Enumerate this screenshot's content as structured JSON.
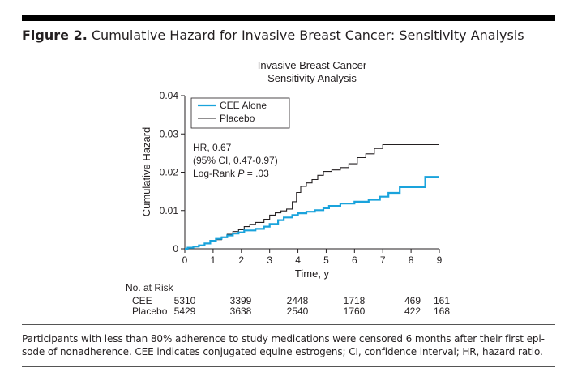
{
  "figure": {
    "label": "Figure 2.",
    "title": "Cumulative Hazard for Invasive Breast Cancer: Sensitivity Analysis",
    "caption_lines": [
      "Participants with less than 80% adherence to study medications were censored 6 months after their first epi-",
      "sode of nonadherence. CEE indicates conjugated equine estrogens; CI, confidence interval; HR, hazard ratio."
    ]
  },
  "chart_data": {
    "type": "line",
    "title": [
      "Invasive Breast Cancer",
      "Sensitivity Analysis"
    ],
    "xlabel": "Time, y",
    "ylabel": "Cumulative Hazard",
    "xlim": [
      0,
      9
    ],
    "ylim": [
      0,
      0.04
    ],
    "xticks": [
      0,
      1,
      2,
      3,
      4,
      5,
      6,
      7,
      8,
      9
    ],
    "yticks": [
      0,
      0.01,
      0.02,
      0.03,
      0.04
    ],
    "ytick_labels": [
      "0",
      "0.01",
      "0.02",
      "0.03",
      "0.04"
    ],
    "grid": false,
    "legend": {
      "placement": "top-left"
    },
    "annotation": {
      "lines": [
        "HR, 0.67",
        "(95% CI, 0.47-0.97)"
      ],
      "logrank_prefix": "Log-Rank ",
      "logrank_p": "P",
      "logrank_suffix": " = .03"
    },
    "series": [
      {
        "name": "CEE Alone",
        "color": "#1aa3dc",
        "steps": [
          [
            0,
            0
          ],
          [
            0.1,
            0.0003
          ],
          [
            0.3,
            0.0006
          ],
          [
            0.5,
            0.0009
          ],
          [
            0.7,
            0.0014
          ],
          [
            0.9,
            0.0021
          ],
          [
            1.1,
            0.0026
          ],
          [
            1.3,
            0.003
          ],
          [
            1.5,
            0.0035
          ],
          [
            1.7,
            0.004
          ],
          [
            1.9,
            0.0043
          ],
          [
            2.1,
            0.0048
          ],
          [
            2.5,
            0.0052
          ],
          [
            2.8,
            0.0058
          ],
          [
            3.0,
            0.0065
          ],
          [
            3.3,
            0.0075
          ],
          [
            3.5,
            0.0082
          ],
          [
            3.8,
            0.0088
          ],
          [
            4.0,
            0.0093
          ],
          [
            4.3,
            0.0097
          ],
          [
            4.6,
            0.0101
          ],
          [
            4.9,
            0.0106
          ],
          [
            5.1,
            0.0112
          ],
          [
            5.5,
            0.0118
          ],
          [
            6.0,
            0.0123
          ],
          [
            6.5,
            0.0128
          ],
          [
            6.9,
            0.0136
          ],
          [
            7.2,
            0.0146
          ],
          [
            7.6,
            0.0161
          ],
          [
            8.2,
            0.0161
          ],
          [
            8.5,
            0.0188
          ],
          [
            9.0,
            0.0188
          ]
        ]
      },
      {
        "name": "Placebo",
        "color": "#231f20",
        "steps": [
          [
            0,
            0
          ],
          [
            0.1,
            0.0002
          ],
          [
            0.3,
            0.0005
          ],
          [
            0.5,
            0.0008
          ],
          [
            0.7,
            0.0014
          ],
          [
            0.9,
            0.0019
          ],
          [
            1.1,
            0.0024
          ],
          [
            1.3,
            0.0031
          ],
          [
            1.5,
            0.0038
          ],
          [
            1.7,
            0.0045
          ],
          [
            1.9,
            0.005
          ],
          [
            2.1,
            0.0058
          ],
          [
            2.3,
            0.0064
          ],
          [
            2.5,
            0.0069
          ],
          [
            2.8,
            0.0077
          ],
          [
            3.0,
            0.0088
          ],
          [
            3.2,
            0.0094
          ],
          [
            3.4,
            0.0099
          ],
          [
            3.6,
            0.0104
          ],
          [
            3.8,
            0.0123
          ],
          [
            3.95,
            0.0147
          ],
          [
            4.1,
            0.0163
          ],
          [
            4.3,
            0.0172
          ],
          [
            4.5,
            0.0181
          ],
          [
            4.7,
            0.0192
          ],
          [
            4.9,
            0.0202
          ],
          [
            5.2,
            0.0206
          ],
          [
            5.5,
            0.0212
          ],
          [
            5.8,
            0.0222
          ],
          [
            6.1,
            0.0238
          ],
          [
            6.4,
            0.0248
          ],
          [
            6.7,
            0.0262
          ],
          [
            7.0,
            0.0272
          ],
          [
            7.6,
            0.0272
          ],
          [
            9.0,
            0.0272
          ]
        ]
      }
    ],
    "risk_table": {
      "title": "No. at Risk",
      "rows": [
        {
          "label": "CEE",
          "values": [
            "5310",
            "3399",
            "2448",
            "1718",
            "469",
            "161"
          ]
        },
        {
          "label": "Placebo",
          "values": [
            "5429",
            "3638",
            "2540",
            "1760",
            "422",
            "168"
          ]
        }
      ]
    }
  }
}
